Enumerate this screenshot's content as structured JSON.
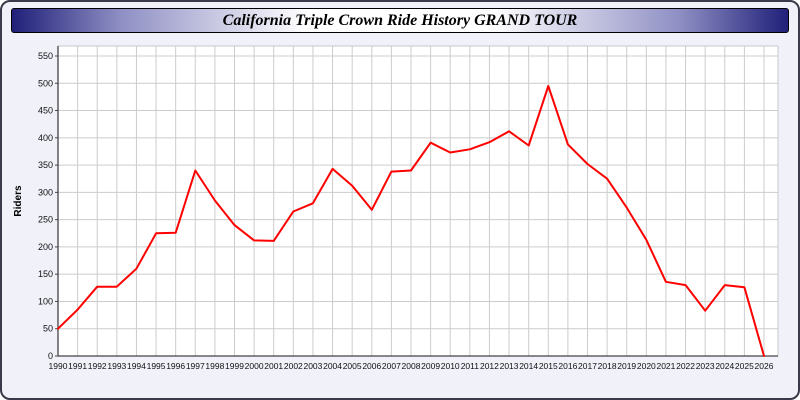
{
  "page": {
    "title": "California Triple Crown Ride History GRAND TOUR"
  },
  "chart_data": {
    "type": "line",
    "title": "California Triple Crown Ride History GRAND TOUR",
    "xlabel": "",
    "ylabel": "Riders",
    "ylim": [
      0,
      550
    ],
    "ytick_step": 50,
    "grid": true,
    "legend": false,
    "x": [
      1990,
      1991,
      1992,
      1993,
      1994,
      1995,
      1996,
      1997,
      1998,
      1999,
      2000,
      2001,
      2002,
      2003,
      2004,
      2005,
      2006,
      2007,
      2008,
      2009,
      2010,
      2011,
      2012,
      2013,
      2014,
      2015,
      2016,
      2017,
      2018,
      2019,
      2020,
      2021,
      2022,
      2023,
      2024,
      2025,
      2026
    ],
    "series": [
      {
        "name": "Riders",
        "color": "#ff0000",
        "values": [
          50,
          85,
          127,
          127,
          160,
          225,
          226,
          340,
          285,
          240,
          212,
          211,
          265,
          280,
          343,
          312,
          268,
          338,
          340,
          391,
          373,
          379,
          392,
          412,
          386,
          495,
          388,
          352,
          325,
          272,
          213,
          136,
          130,
          83,
          130,
          126,
          0
        ]
      }
    ],
    "colors": {
      "plot_bg": "#ffffff",
      "grid": "#cccccc",
      "axis": "#444444",
      "tick_text": "#111111",
      "page_bg": "#f1f1fa"
    }
  }
}
